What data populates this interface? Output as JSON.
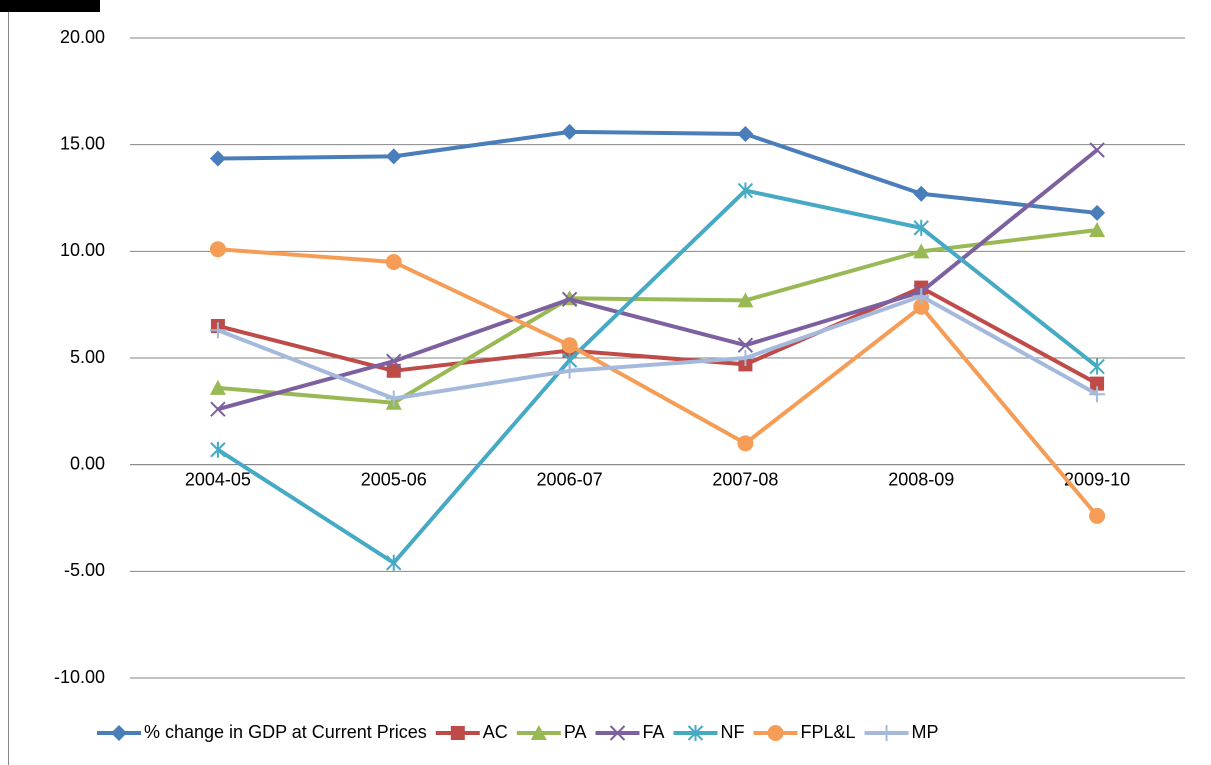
{
  "chart_data": {
    "type": "line",
    "categories": [
      "2004-05",
      "2005-06",
      "2006-07",
      "2007-08",
      "2008-09",
      "2009-10"
    ],
    "series": [
      {
        "name": "% change in GDP at Current Prices",
        "color": "#4a7ebb",
        "marker": "diamond",
        "values": [
          14.35,
          14.45,
          15.6,
          15.5,
          12.7,
          11.8
        ]
      },
      {
        "name": "AC",
        "color": "#be4b48",
        "marker": "square",
        "values": [
          6.5,
          4.4,
          5.35,
          4.7,
          8.3,
          3.8
        ]
      },
      {
        "name": "PA",
        "color": "#98b954",
        "marker": "triangle",
        "values": [
          3.6,
          2.9,
          7.8,
          7.7,
          10.0,
          11.0
        ]
      },
      {
        "name": "FA",
        "color": "#7d60a0",
        "marker": "x",
        "values": [
          2.6,
          4.85,
          7.75,
          5.6,
          8.1,
          14.75
        ]
      },
      {
        "name": "NF",
        "color": "#46aac5",
        "marker": "star",
        "values": [
          0.7,
          -4.6,
          4.9,
          12.85,
          11.1,
          4.6
        ]
      },
      {
        "name": "FPL&L",
        "color": "#f59d56",
        "marker": "circle",
        "values": [
          10.1,
          9.5,
          5.6,
          1.0,
          7.4,
          -2.4
        ]
      },
      {
        "name": "MP",
        "color": "#a5b9dc",
        "marker": "plus",
        "values": [
          6.3,
          3.1,
          4.4,
          5.0,
          7.9,
          3.3
        ]
      }
    ],
    "ylim": [
      -10,
      20
    ],
    "yticks": [
      {
        "value": -10,
        "label": "-10.00"
      },
      {
        "value": -5,
        "label": "-5.00"
      },
      {
        "value": 0,
        "label": "0.00"
      },
      {
        "value": 5,
        "label": "5.00"
      },
      {
        "value": 10,
        "label": "10.00"
      },
      {
        "value": 15,
        "label": "15.00"
      },
      {
        "value": 20,
        "label": "20.00"
      }
    ],
    "grid": true,
    "legend": "bottom"
  }
}
